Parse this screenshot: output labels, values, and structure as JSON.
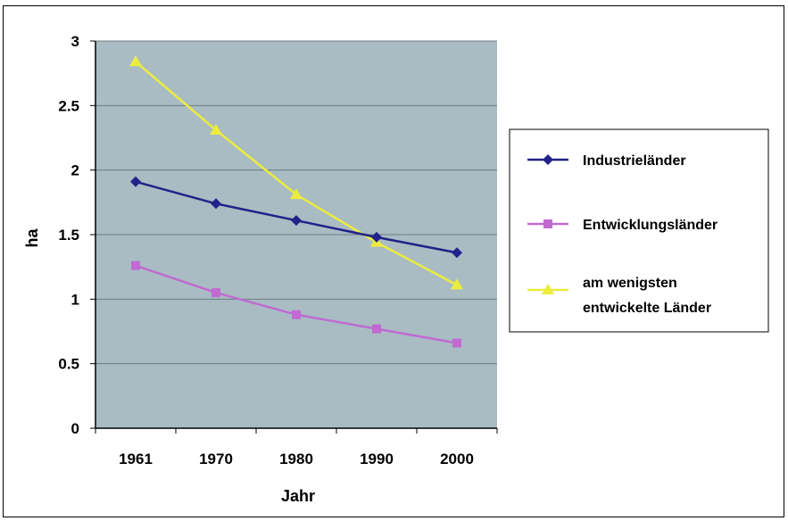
{
  "chart_data": {
    "type": "line",
    "title": "",
    "xlabel": "Jahr",
    "ylabel": "ha",
    "categories": [
      "1961",
      "1970",
      "1980",
      "1990",
      "2000"
    ],
    "ylim": [
      0,
      3
    ],
    "yticks": [
      "0",
      "0.5",
      "1",
      "1.5",
      "2",
      "2.5",
      "3"
    ],
    "grid": "horizontal",
    "legend_position": "right",
    "plot_background": "#a9bcc3",
    "series": [
      {
        "name": "Industrieländer",
        "color": "#22228a",
        "marker": "diamond",
        "values": [
          1.91,
          1.74,
          1.61,
          1.48,
          1.36
        ]
      },
      {
        "name": "Entwicklungsländer",
        "color": "#c06ad2",
        "marker": "square",
        "values": [
          1.26,
          1.05,
          0.88,
          0.77,
          0.66
        ]
      },
      {
        "name": "am wenigsten entwickelte Länder",
        "name_lines": [
          "am wenigsten",
          "entwickelte Länder"
        ],
        "color": "#ecec3e",
        "marker": "triangle",
        "values": [
          2.84,
          2.31,
          1.81,
          1.44,
          1.11
        ]
      }
    ]
  }
}
